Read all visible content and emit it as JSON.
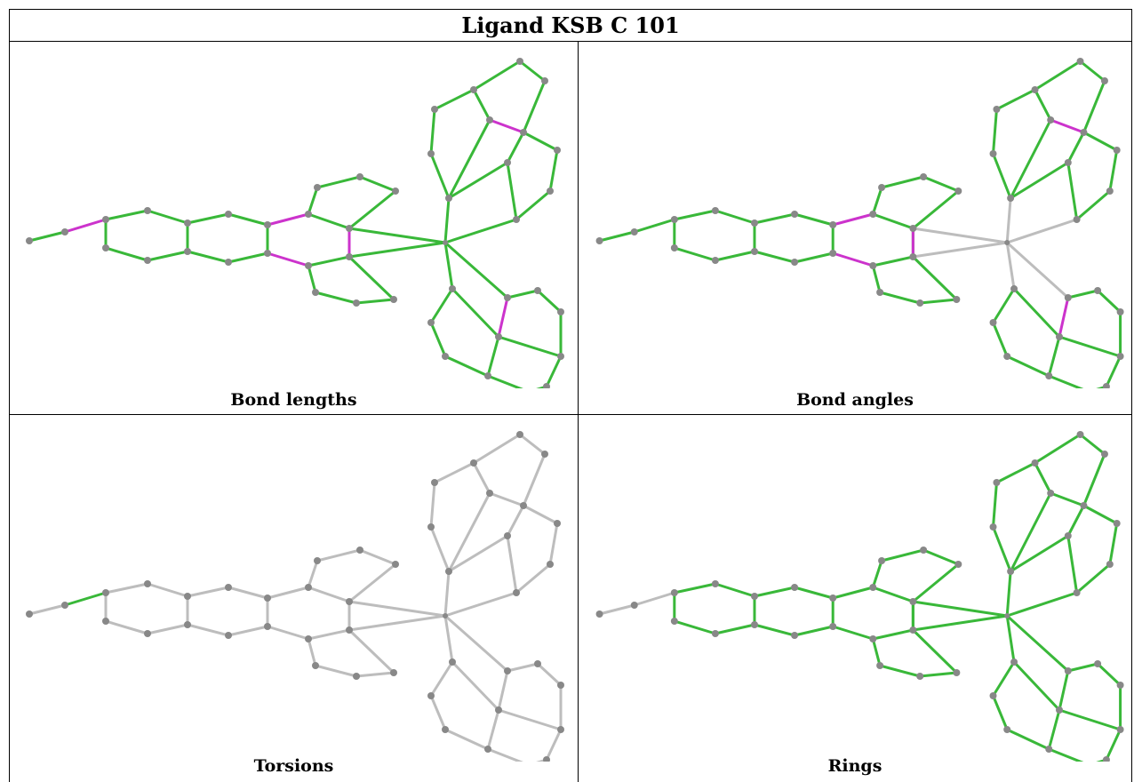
{
  "title": "Ligand KSB C 101",
  "panels": [
    {
      "caption": "Bond lengths",
      "bond_colors": {
        "base": "#39b839",
        "flag": "#cc33cc"
      }
    },
    {
      "caption": "Bond angles",
      "bond_colors": {
        "base": "#39b839",
        "flag": "#cc33cc",
        "neutral": "#bdbdbd"
      }
    },
    {
      "caption": "Torsions",
      "bond_colors": {
        "base": "#bdbdbd",
        "flag": "#39b839"
      }
    },
    {
      "caption": "Rings",
      "bond_colors": {
        "base": "#39b839",
        "neutral": "#bdbdbd"
      }
    }
  ],
  "atom_color": "#888888",
  "icons": [
    "molecule-structure-icon"
  ]
}
